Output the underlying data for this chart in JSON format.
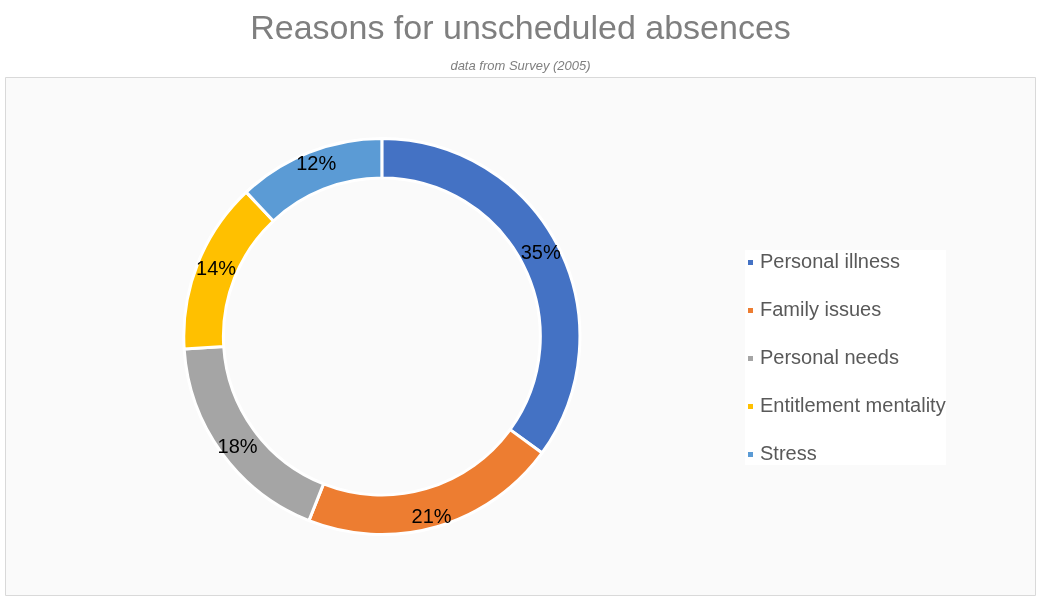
{
  "chart_data": {
    "type": "donut",
    "title": "Reasons for unscheduled absences",
    "subtitle": "data from Survey (2005)",
    "categories": [
      "Personal illness",
      "Family issues",
      "Personal needs",
      "Entitlement mentality",
      "Stress"
    ],
    "values": [
      35,
      21,
      18,
      14,
      12
    ],
    "colors": [
      "#4472c4",
      "#ed7d31",
      "#a5a5a5",
      "#ffc000",
      "#5b9bd5"
    ],
    "value_labels": [
      "35%",
      "21%",
      "18%",
      "14%",
      "12%"
    ],
    "legend": "right"
  }
}
